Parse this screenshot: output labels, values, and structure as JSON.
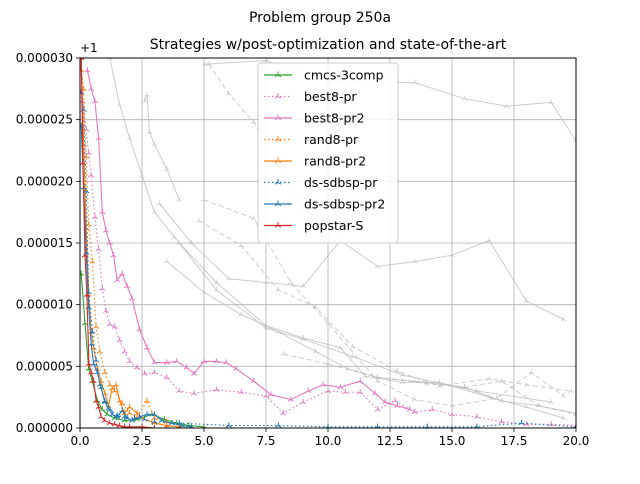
{
  "chart_data": {
    "type": "line",
    "title": "Problem group 250a",
    "subtitle": "Strategies w/post-optimization and state-of-the-art",
    "xlabel": "",
    "ylabel": "",
    "y_offset_label": "+1",
    "xlim": [
      0,
      20
    ],
    "ylim": [
      0,
      3e-05
    ],
    "x_ticks": [
      "0.0",
      "2.5",
      "5.0",
      "7.5",
      "10.0",
      "12.5",
      "15.0",
      "17.5",
      "20.0"
    ],
    "y_ticks": [
      "0.000000",
      "0.000005",
      "0.000010",
      "0.000015",
      "0.000020",
      "0.000025",
      "0.000030"
    ],
    "grid": true,
    "legend_position": "top-center",
    "background_series_color": "#bbbbbb",
    "background_series": [
      {
        "style": "solid",
        "x": [
          3.2,
          4.5,
          6.0,
          7.5,
          9.0,
          10.5,
          12.0,
          13.5,
          15.0,
          16.5,
          18.0,
          19.5
        ],
        "y": [
          1.82e-05,
          1.5e-05,
          1.21e-05,
          1.18e-05,
          1.15e-05,
          1.52e-05,
          1.31e-05,
          1.35e-05,
          1.4e-05,
          1.52e-05,
          1.03e-05,
          8.8e-06
        ]
      },
      {
        "style": "dashed",
        "x": [
          4.8,
          6.5,
          8.0,
          9.5,
          11.0,
          12.8,
          14.5,
          16.5,
          18.0,
          19.8
        ],
        "y": [
          1.68e-05,
          1.48e-05,
          1.12e-05,
          9.8e-06,
          6.6e-06,
          4.6e-06,
          3.4e-06,
          4e-06,
          3.5e-06,
          3e-06
        ]
      },
      {
        "style": "solid",
        "x": [
          4.0,
          5.5,
          7.5,
          9.0,
          10.5,
          11.5,
          13.0,
          14.5,
          16.5,
          18.0,
          19.5
        ],
        "y": [
          1.5e-05,
          1.18e-05,
          8.3e-06,
          7.3e-06,
          6.5e-06,
          4.2e-06,
          3.7e-06,
          3.7e-06,
          2.5e-06,
          1.7e-06,
          8e-07
        ]
      },
      {
        "style": "solid",
        "x": [
          3.5,
          5.0,
          6.5,
          8.0,
          9.5,
          10.8,
          12.0,
          13.5,
          15.5,
          17.0,
          18.5,
          20.0
        ],
        "y": [
          1.35e-05,
          1.1e-05,
          9.2e-06,
          7.8e-06,
          6.2e-06,
          4.8e-06,
          4.1e-06,
          3.8e-06,
          3.3e-06,
          2.2e-06,
          1.8e-06,
          1.2e-06
        ]
      },
      {
        "style": "dashed",
        "x": [
          5.0,
          7.0,
          8.5,
          10.0,
          12.0,
          13.5,
          15.0,
          16.8,
          18.2,
          19.5
        ],
        "y": [
          1.85e-05,
          1.7e-05,
          1.18e-05,
          8.5e-06,
          3.8e-06,
          2.3e-06,
          1.8e-06,
          2.4e-06,
          4.5e-06,
          2.6e-06
        ]
      },
      {
        "style": "solid",
        "x": [
          1.2,
          1.6,
          2.0,
          2.5,
          3.0,
          3.8,
          5.5,
          7.5,
          9.0,
          11.0,
          13.0,
          16.0,
          19.0
        ],
        "y": [
          3e-05,
          2.62e-05,
          2.35e-05,
          2.05e-05,
          1.75e-05,
          1.55e-05,
          1.12e-05,
          8.1e-06,
          7.2e-06,
          5.8e-06,
          4.3e-06,
          3e-06,
          2.1e-06
        ]
      },
      {
        "style": "solid",
        "x": [
          5.0,
          7.5,
          10.0,
          13.5,
          15.5,
          17.2,
          19.0,
          20.0
        ],
        "y": [
          2.95e-05,
          2.98e-05,
          2.81e-05,
          2.8e-05,
          2.67e-05,
          2.61e-05,
          2.64e-05,
          2.33e-05
        ]
      },
      {
        "style": "dashed",
        "x": [
          5.2,
          6.0,
          7.0,
          8.0,
          9.0,
          10.0
        ],
        "y": [
          2.95e-05,
          2.71e-05,
          2.48e-05,
          2.12e-05,
          1.78e-05,
          1.52e-05
        ]
      },
      {
        "style": "solid",
        "x": [
          2.6,
          2.7,
          2.8,
          3.0,
          3.5,
          4.0
        ],
        "y": [
          2.65e-05,
          2.7e-05,
          2.4e-05,
          2.3e-05,
          2.1e-05,
          1.85e-05
        ]
      },
      {
        "style": "dashed",
        "x": [
          8.2,
          10.0,
          12.0,
          14.0,
          15.5,
          17.0,
          18.5,
          20.0
        ],
        "y": [
          6e-06,
          5.2e-06,
          4.1e-06,
          3.6e-06,
          3.3e-06,
          3.8e-06,
          1.8e-06,
          1.1e-06
        ]
      }
    ],
    "series": [
      {
        "name": "cmcs-3comp",
        "color": "#2ca02c",
        "style": "solid",
        "x": [
          0.05,
          0.2,
          0.35,
          0.5,
          0.7,
          0.9,
          1.1,
          1.4,
          1.8,
          2.3,
          2.9,
          3.4,
          3.9,
          4.4,
          5.0
        ],
        "y": [
          1.25e-05,
          8.5e-06,
          4.8e-06,
          3.8e-06,
          2.2e-06,
          1.5e-06,
          1.1e-06,
          8e-07,
          6e-07,
          7e-07,
          1.1e-06,
          7e-07,
          4e-07,
          2e-07,
          1e-07
        ]
      },
      {
        "name": "best8-pr",
        "color": "#e377c2",
        "style": "dotted",
        "x": [
          0.1,
          0.25,
          0.35,
          0.45,
          0.6,
          0.75,
          0.9,
          1.05,
          1.2,
          1.4,
          1.6,
          1.8,
          2.0,
          2.3,
          2.6,
          3.0,
          3.5,
          4.0,
          4.6,
          5.5,
          6.5,
          7.5,
          8.2,
          9.0,
          10.0,
          10.7,
          11.3,
          12.0,
          12.7,
          13.5,
          14.2,
          15.0,
          16.0,
          17.0,
          18.0,
          19.0,
          20.0
        ],
        "y": [
          2.65e-05,
          2.42e-05,
          2.23e-05,
          2.05e-05,
          1.71e-05,
          1.45e-05,
          1.13e-05,
          9.5e-06,
          8.4e-06,
          8.2e-06,
          7.1e-06,
          6.2e-06,
          5.4e-06,
          4.9e-06,
          4.4e-06,
          4.5e-06,
          4.1e-06,
          3e-06,
          2.8e-06,
          3.1e-06,
          2.9e-06,
          2.6e-06,
          1.2e-06,
          2.1e-06,
          3e-06,
          2.9e-06,
          2.9e-06,
          1.5e-06,
          2.2e-06,
          1.3e-06,
          1.5e-06,
          1.1e-06,
          9e-07,
          5e-07,
          3e-07,
          3e-07,
          2e-07
        ]
      },
      {
        "name": "best8-pr2",
        "color": "#e377c2",
        "style": "solid",
        "x": [
          0.3,
          0.45,
          0.6,
          0.75,
          0.9,
          1.05,
          1.2,
          1.35,
          1.5,
          1.7,
          1.9,
          2.1,
          2.4,
          2.7,
          3.0,
          3.5,
          3.9,
          4.3,
          4.6,
          5.0,
          5.5,
          5.9,
          6.3,
          7.0,
          7.7,
          8.5,
          9.2,
          9.8,
          10.5,
          11.3,
          11.9,
          12.3,
          12.8,
          13.3
        ],
        "y": [
          2.9e-05,
          2.75e-05,
          2.65e-05,
          2.35e-05,
          1.75e-05,
          1.6e-05,
          1.5e-05,
          1.4e-05,
          1.2e-05,
          1.25e-05,
          1.15e-05,
          1.05e-05,
          8e-06,
          6.5e-06,
          5.3e-06,
          5.3e-06,
          5.4e-06,
          4.9e-06,
          4.4e-06,
          5.4e-06,
          5.4e-06,
          5.3e-06,
          4.8e-06,
          3.8e-06,
          2.7e-06,
          2.3e-06,
          3e-06,
          3.5e-06,
          3.3e-06,
          3.8e-06,
          2.8e-06,
          2.1e-06,
          1.8e-06,
          1.5e-06
        ]
      },
      {
        "name": "rand8-pr",
        "color": "#ff7f0e",
        "style": "dotted",
        "x": [
          0.05,
          0.15,
          0.25,
          0.35,
          0.5,
          0.65,
          0.8,
          1.0,
          1.2,
          1.4,
          1.7,
          2.0,
          2.3,
          2.7,
          3.0,
          3.5,
          4.0
        ],
        "y": [
          2.9e-05,
          2.75e-05,
          2.2e-05,
          1.65e-05,
          1.35e-05,
          8.2e-06,
          6.2e-06,
          4.5e-06,
          3.5e-06,
          3e-06,
          2e-06,
          1.2e-06,
          9e-07,
          2.2e-06,
          8e-07,
          5e-07,
          2e-07
        ]
      },
      {
        "name": "rand8-pr2",
        "color": "#ff7f0e",
        "style": "solid",
        "x": [
          0.05,
          0.15,
          0.25,
          0.35,
          0.45,
          0.55,
          0.7,
          0.85,
          1.0,
          1.15,
          1.3,
          1.45,
          1.6,
          1.8,
          2.0,
          2.3,
          2.6,
          3.0,
          3.5,
          4.0
        ],
        "y": [
          3e-05,
          2.3e-05,
          1.62e-05,
          1.08e-05,
          7.8e-06,
          6.5e-06,
          4.8e-06,
          3.8e-06,
          2.8e-06,
          1.8e-06,
          3.2e-06,
          3.5e-06,
          2.2e-06,
          1.2e-06,
          1.7e-06,
          1.2e-06,
          7e-07,
          4e-07,
          2e-07,
          1e-07
        ]
      },
      {
        "name": "ds-sdbsp-pr",
        "color": "#1f77b4",
        "style": "dotted",
        "x": [
          0.05,
          0.15,
          0.25,
          0.35,
          0.5,
          0.65,
          0.8,
          1.0,
          1.2,
          1.5,
          1.8,
          2.2,
          2.6,
          3.0,
          4.0,
          6.0,
          8.0,
          10.0,
          12.0,
          14.0,
          16.0,
          17.8,
          20.0
        ],
        "y": [
          2.72e-05,
          2.58e-05,
          1.92e-05,
          1.1e-05,
          7.8e-06,
          5.5e-06,
          3.5e-06,
          2.2e-06,
          1.5e-06,
          1e-06,
          9e-07,
          8e-07,
          7e-07,
          5e-07,
          4e-07,
          2e-07,
          2e-07,
          1e-07,
          1e-07,
          1e-07,
          1e-07,
          4e-07,
          1e-07
        ]
      },
      {
        "name": "ds-sdbsp-pr2",
        "color": "#1f77b4",
        "style": "solid",
        "x": [
          0.05,
          0.15,
          0.25,
          0.35,
          0.45,
          0.55,
          0.7,
          0.85,
          1.0,
          1.15,
          1.3,
          1.5,
          1.7,
          1.9,
          2.1,
          2.4,
          2.7,
          3.0,
          3.3,
          3.7,
          4.1,
          4.5
        ],
        "y": [
          2.45e-05,
          1.95e-05,
          1.42e-05,
          9.8e-06,
          6.8e-06,
          5.2e-06,
          4.5e-06,
          3.3e-06,
          2.1e-06,
          1.6e-06,
          1.1e-06,
          9e-07,
          1.4e-06,
          8e-07,
          6e-07,
          9e-07,
          1.1e-06,
          1.1e-06,
          6e-07,
          4e-07,
          2e-07,
          1e-07
        ]
      },
      {
        "name": "popstar-S",
        "color": "#d62728",
        "style": "solid",
        "x": [
          0.05,
          0.12,
          0.2,
          0.28,
          0.36,
          0.45,
          0.55,
          0.65,
          0.75,
          0.85,
          1.0,
          1.2,
          1.4,
          1.6,
          1.8,
          2.0,
          2.5,
          3.0,
          3.5
        ],
        "y": [
          3e-05,
          2.15e-05,
          1.4e-05,
          1.08e-05,
          5.2e-06,
          4.5e-06,
          3.8e-06,
          2.2e-06,
          1.7e-06,
          9e-07,
          6e-07,
          4e-07,
          3e-07,
          2e-07,
          1e-07,
          1e-07,
          1e-07,
          0.0,
          0.0
        ]
      }
    ]
  }
}
